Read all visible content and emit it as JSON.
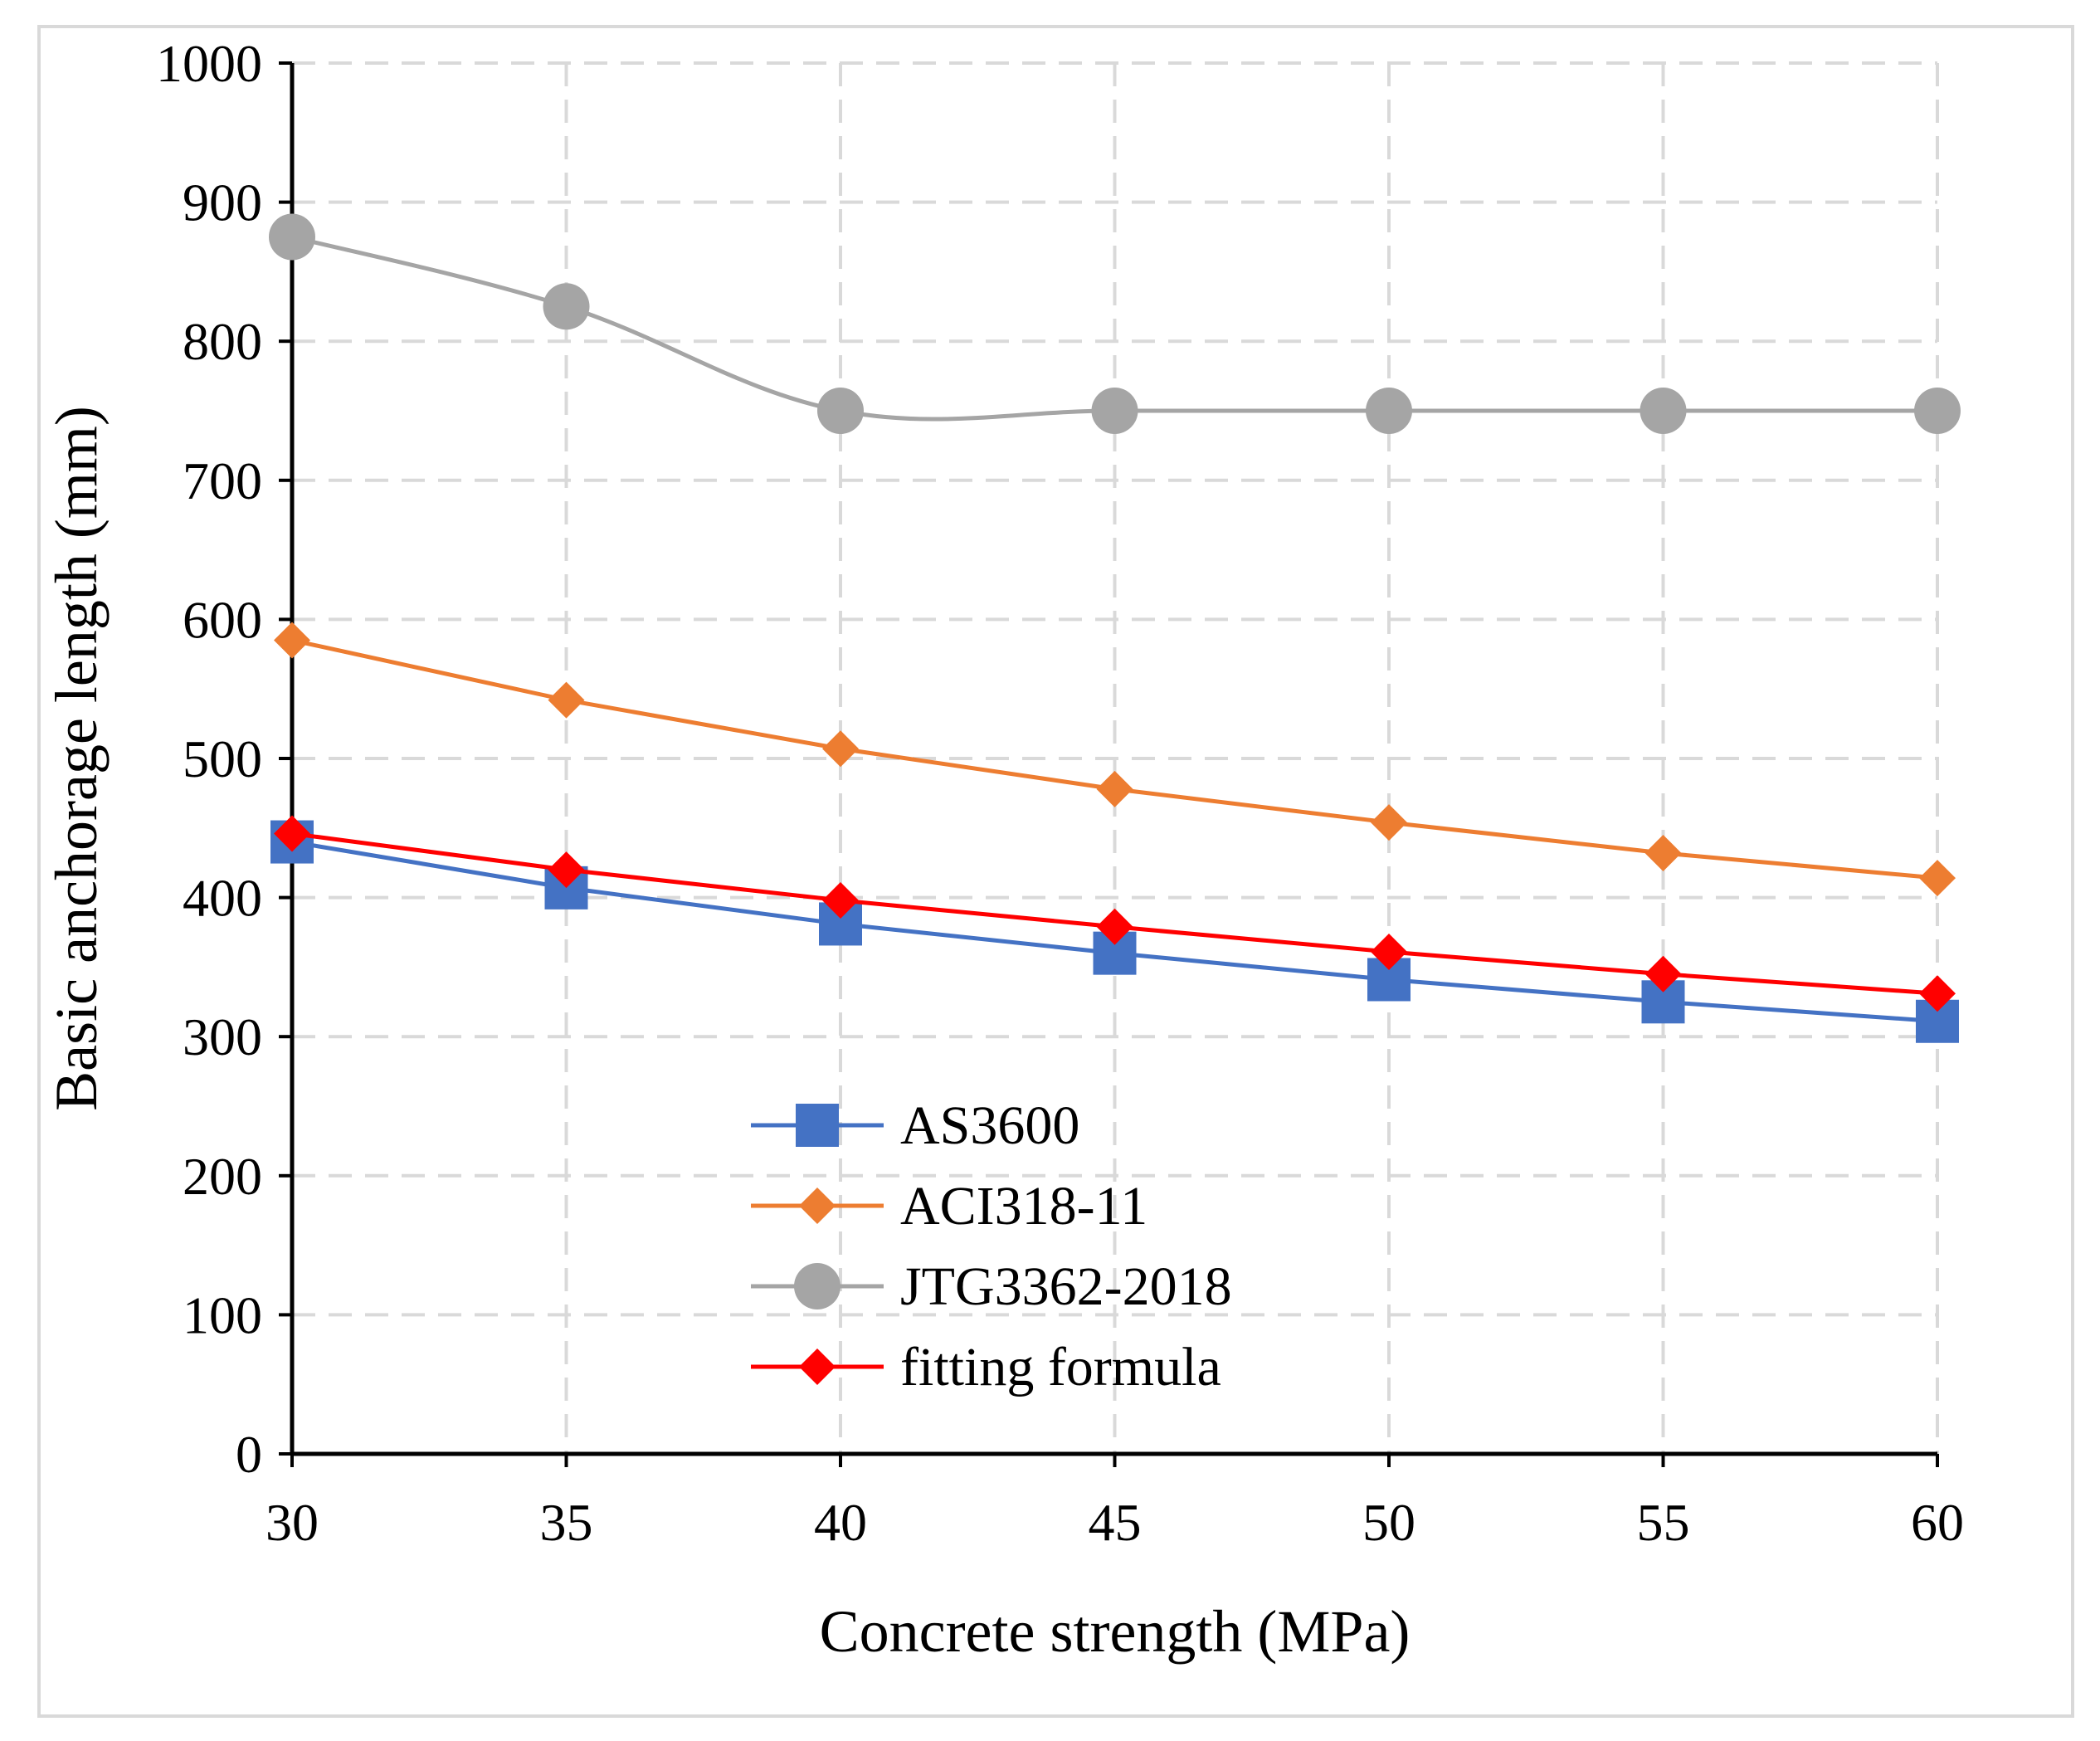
{
  "chart_data": {
    "type": "line",
    "title": "",
    "xlabel": "Concrete strength (MPa)",
    "ylabel": "Basic anchorage length (mm)",
    "x": [
      30,
      35,
      40,
      45,
      50,
      55,
      60
    ],
    "xlim": [
      30,
      60
    ],
    "ylim": [
      0,
      1000
    ],
    "xticks": [
      "30",
      "35",
      "40",
      "45",
      "50",
      "55",
      "60"
    ],
    "yticks": [
      "0",
      "100",
      "200",
      "300",
      "400",
      "500",
      "600",
      "700",
      "800",
      "900",
      "1000"
    ],
    "grid": true,
    "legend_position": "bottom-center",
    "series": [
      {
        "name": "AS3600",
        "color": "#4472c4",
        "marker": "square",
        "smooth": false,
        "values": [
          440,
          407,
          381,
          360,
          341,
          325,
          311
        ]
      },
      {
        "name": "ACI318-11",
        "color": "#ed7d31",
        "marker": "diamond",
        "smooth": false,
        "values": [
          585,
          542,
          507,
          478,
          454,
          432,
          414
        ]
      },
      {
        "name": "JTG3362-2018",
        "color": "#a5a5a5",
        "marker": "circle",
        "smooth": true,
        "values": [
          875,
          825,
          750,
          750,
          750,
          750,
          750
        ]
      },
      {
        "name": "fitting formula",
        "color": "#ff0000",
        "marker": "diamond",
        "smooth": false,
        "values": [
          446,
          420,
          398,
          379,
          361,
          345,
          331
        ]
      }
    ]
  }
}
